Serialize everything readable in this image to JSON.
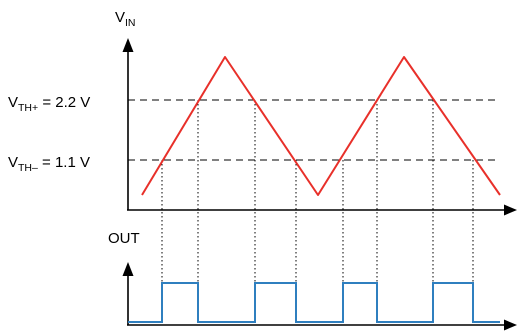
{
  "labels": {
    "vin_main": "V",
    "vin_sub": "IN",
    "vth_high_main": "V",
    "vth_high_sub": "TH+",
    "vth_high_value": " = 2.2 V",
    "vth_low_main": "V",
    "vth_low_sub": "TH–",
    "vth_low_value": " = 1.1 V",
    "out": "OUT"
  },
  "colors": {
    "input_wave": "#e8302a",
    "output_wave": "#2f7fbf",
    "axis": "#000000",
    "threshold_line": "#000000",
    "transition_guide": "#000000"
  }
}
